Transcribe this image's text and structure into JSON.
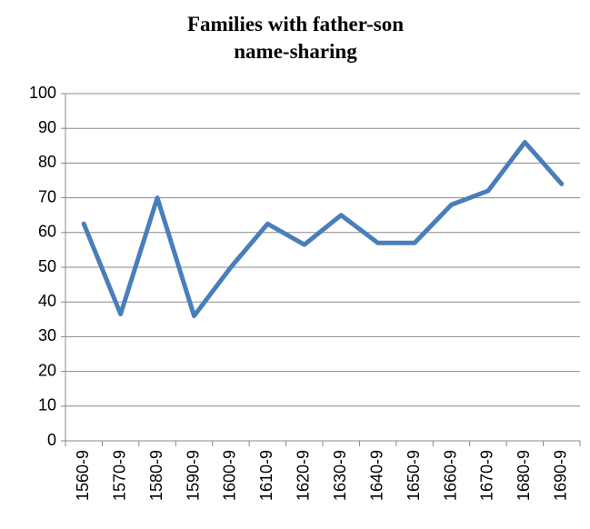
{
  "chart_data": {
    "type": "line",
    "title": "Families with father-son name-sharing",
    "categories": [
      "1560-9",
      "1570-9",
      "1580-9",
      "1590-9",
      "1600-9",
      "1610-9",
      "1620-9",
      "1630-9",
      "1640-9",
      "1650-9",
      "1660-9",
      "1670-9",
      "1680-9",
      "1690-9"
    ],
    "values": [
      62.5,
      36.5,
      70,
      36,
      50,
      62.5,
      56.5,
      65,
      57,
      57,
      68,
      72,
      86,
      74
    ],
    "color": "#4a7ebb",
    "ylim": [
      0,
      100
    ],
    "yticks": [
      0,
      10,
      20,
      30,
      40,
      50,
      60,
      70,
      80,
      90,
      100
    ],
    "grid": true
  }
}
